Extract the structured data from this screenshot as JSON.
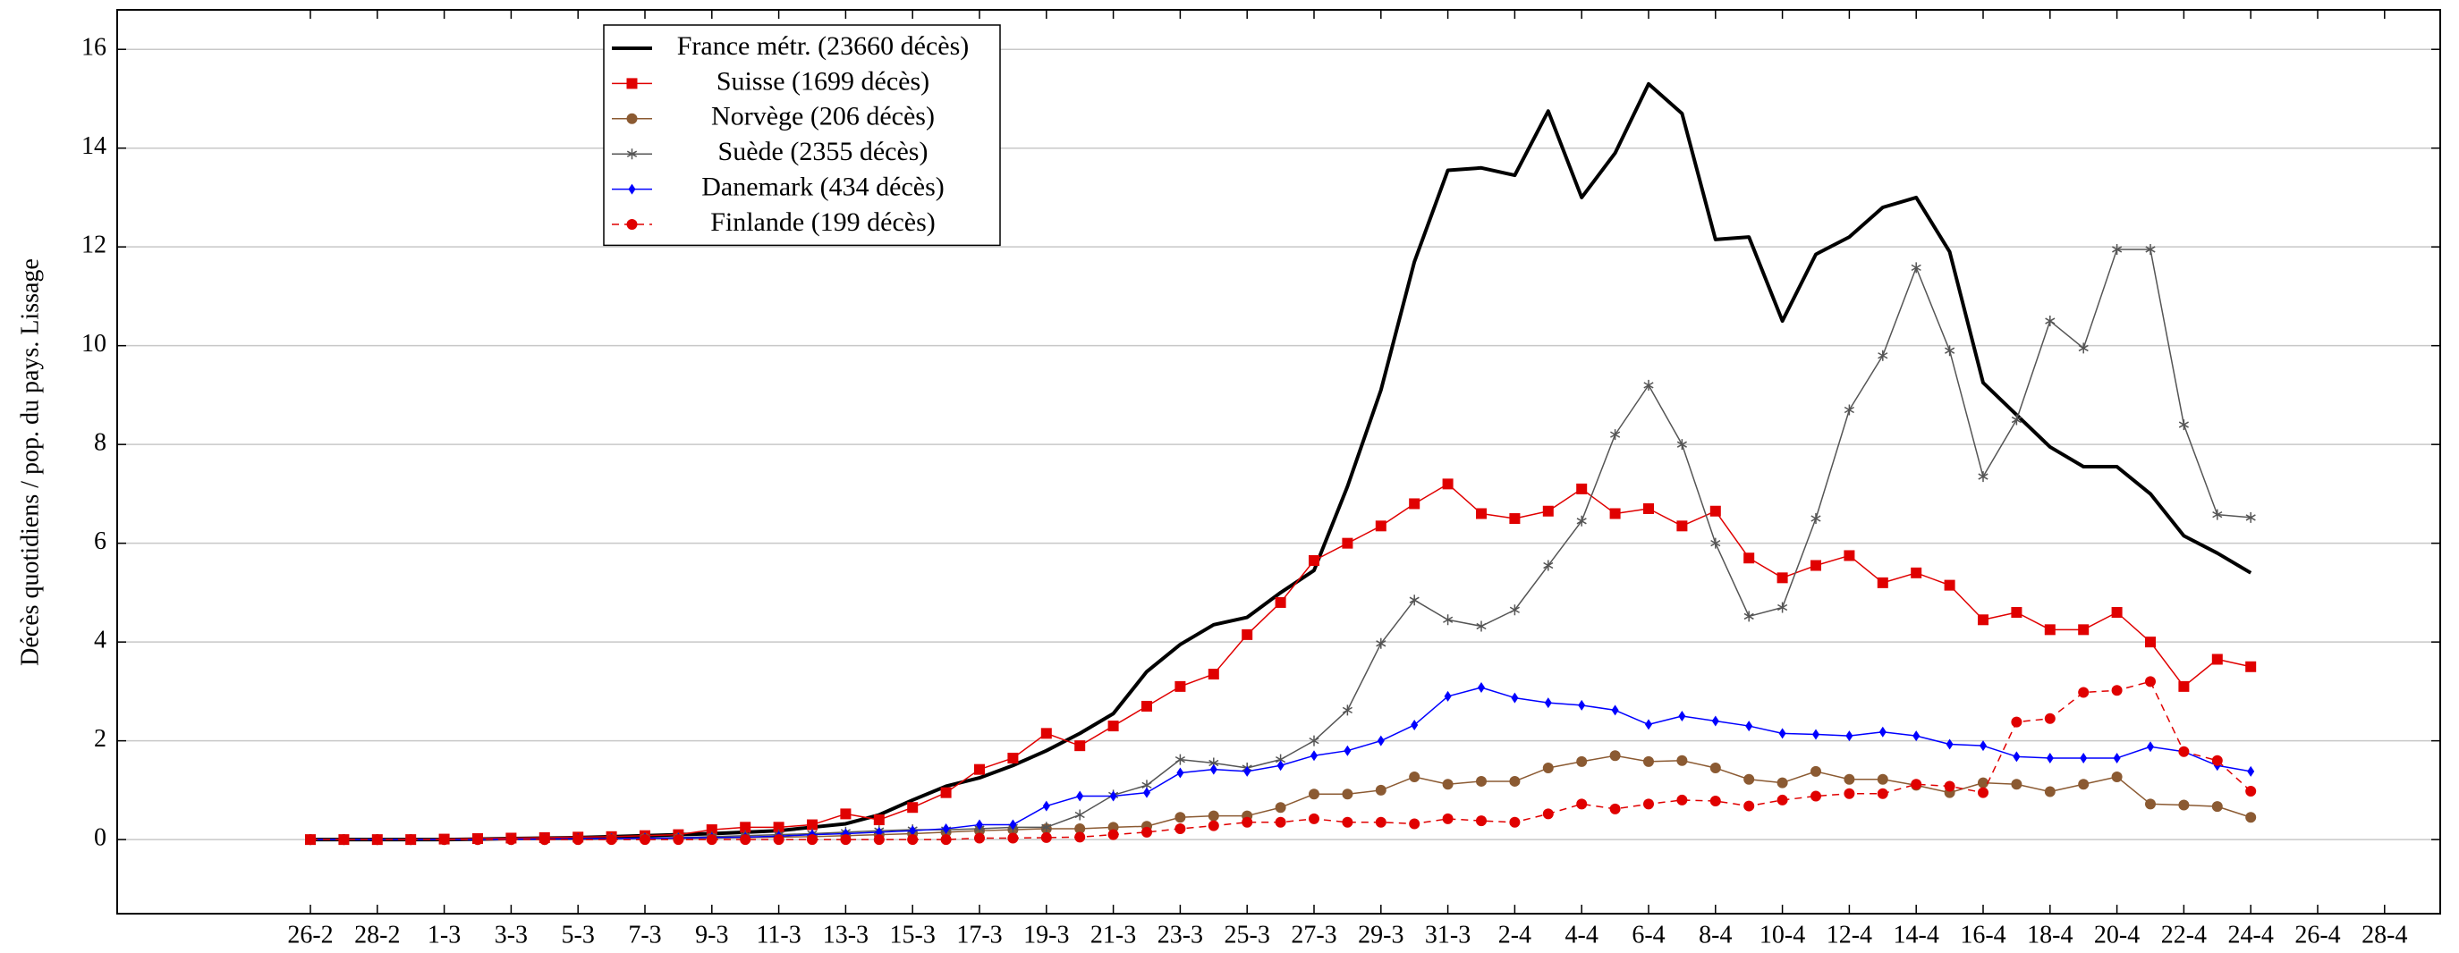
{
  "chart_data": {
    "type": "line",
    "y_label": "Décès quotidiens / pop. du pays. Lissage",
    "categories": [
      "26-2",
      null,
      "28-2",
      null,
      "1-3",
      null,
      "3-3",
      null,
      "5-3",
      null,
      "7-3",
      null,
      "9-3",
      null,
      "11-3",
      null,
      "13-3",
      null,
      "15-3",
      null,
      "17-3",
      null,
      "19-3",
      null,
      "21-3",
      null,
      "23-3",
      null,
      "25-3",
      null,
      "27-3",
      null,
      "29-3",
      null,
      "31-3",
      null,
      "2-4",
      null,
      "4-4",
      null,
      "6-4",
      null,
      "8-4",
      null,
      "10-4",
      null,
      "12-4",
      null,
      "14-4",
      null,
      "16-4",
      null,
      "18-4",
      null,
      "20-4",
      null,
      "22-4",
      null,
      "24-4",
      null,
      "26-4",
      null,
      "28-4"
    ],
    "ylim": [
      -1.5,
      16.8
    ],
    "yticks": [
      0,
      2,
      4,
      6,
      8,
      10,
      12,
      14,
      16
    ],
    "grid": true,
    "legend": "upper left",
    "series": [
      {
        "name": "France métr. (23660 décès)",
        "color": "#000000",
        "marker": "none",
        "dashed": false,
        "values": [
          0,
          0,
          0,
          0,
          0,
          0.01,
          0.02,
          0.03,
          0.04,
          0.06,
          0.08,
          0.1,
          0.12,
          0.15,
          0.18,
          0.25,
          0.32,
          0.5,
          0.8,
          1.08,
          1.25,
          1.5,
          1.8,
          2.15,
          2.55,
          3.4,
          3.95,
          4.35,
          4.5,
          5.0,
          5.45,
          7.15,
          9.1,
          11.7,
          13.55,
          13.6,
          13.45,
          14.75,
          13.0,
          13.9,
          15.3,
          14.7,
          12.15,
          12.2,
          10.5,
          11.85,
          12.2,
          12.8,
          13.0,
          11.9,
          9.25,
          8.6,
          7.95,
          7.55,
          7.55,
          7.0,
          6.15,
          5.8,
          5.4,
          null,
          null,
          null,
          null
        ]
      },
      {
        "name": "Suisse (1699 décès)",
        "color": "#e00000",
        "marker": "square",
        "dashed": false,
        "values": [
          0,
          0,
          0,
          0,
          0.01,
          0.02,
          0.03,
          0.04,
          0.05,
          0.06,
          0.08,
          0.1,
          0.2,
          0.25,
          0.25,
          0.3,
          0.52,
          0.4,
          0.65,
          0.95,
          1.42,
          1.65,
          2.15,
          1.9,
          2.3,
          2.7,
          3.1,
          3.35,
          4.15,
          4.8,
          5.65,
          6.0,
          6.35,
          6.8,
          7.2,
          6.6,
          6.5,
          6.65,
          7.1,
          6.6,
          6.7,
          6.35,
          6.65,
          5.7,
          5.3,
          5.55,
          5.75,
          5.2,
          5.4,
          5.15,
          4.45,
          4.6,
          4.25,
          4.25,
          4.6,
          4.0,
          3.1,
          3.65,
          3.5,
          null,
          null,
          null,
          null
        ]
      },
      {
        "name": "Norvège (206 décès)",
        "color": "#8b5a32",
        "marker": "circle",
        "dashed": false,
        "values": [
          0,
          0,
          0,
          0,
          0,
          0,
          0,
          0,
          0,
          0.01,
          0.02,
          0.02,
          0.03,
          0.04,
          0.05,
          0.06,
          0.08,
          0.1,
          0.12,
          0.15,
          0.18,
          0.2,
          0.22,
          0.22,
          0.25,
          0.27,
          0.45,
          0.48,
          0.48,
          0.65,
          0.92,
          0.92,
          1.0,
          1.27,
          1.12,
          1.18,
          1.18,
          1.45,
          1.58,
          1.7,
          1.58,
          1.6,
          1.45,
          1.22,
          1.15,
          1.38,
          1.22,
          1.22,
          1.1,
          0.95,
          1.15,
          1.12,
          0.97,
          1.12,
          1.27,
          0.72,
          0.7,
          0.67,
          0.45,
          null,
          null,
          null,
          null
        ]
      },
      {
        "name": "Suède (2355 décès)",
        "color": "#555555",
        "marker": "star",
        "dashed": false,
        "values": [
          0,
          0,
          0,
          0,
          0,
          0,
          0,
          0,
          0.01,
          0.02,
          0.03,
          0.04,
          0.06,
          0.08,
          0.1,
          0.12,
          0.15,
          0.18,
          0.2,
          0.2,
          0.22,
          0.25,
          0.25,
          0.5,
          0.9,
          1.1,
          1.62,
          1.55,
          1.45,
          1.62,
          2.0,
          2.62,
          3.97,
          4.85,
          4.45,
          4.32,
          4.65,
          5.55,
          6.45,
          8.2,
          9.2,
          8.0,
          6.0,
          4.52,
          4.7,
          6.5,
          8.7,
          9.8,
          11.58,
          9.9,
          7.35,
          8.5,
          10.5,
          9.95,
          11.95,
          11.95,
          8.4,
          6.58,
          6.52,
          null,
          null,
          null,
          null
        ]
      },
      {
        "name": "Danemark (434 décès)",
        "color": "#0000ff",
        "marker": "diamond",
        "dashed": false,
        "values": [
          0,
          0,
          0,
          0,
          0,
          0,
          0.01,
          0.01,
          0.02,
          0.02,
          0.03,
          0.03,
          0.04,
          0.05,
          0.07,
          0.1,
          0.12,
          0.15,
          0.18,
          0.22,
          0.3,
          0.3,
          0.68,
          0.88,
          0.88,
          0.95,
          1.35,
          1.42,
          1.38,
          1.5,
          1.7,
          1.8,
          2.0,
          2.32,
          2.9,
          3.08,
          2.87,
          2.77,
          2.72,
          2.62,
          2.33,
          2.5,
          2.4,
          2.3,
          2.15,
          2.13,
          2.1,
          2.18,
          2.1,
          1.93,
          1.9,
          1.68,
          1.65,
          1.65,
          1.65,
          1.88,
          1.78,
          1.5,
          1.38,
          null,
          null,
          null,
          null
        ]
      },
      {
        "name": "Finlande (199 décès)",
        "color": "#e00000",
        "marker": "circle",
        "dashed": true,
        "values": [
          0,
          0,
          0,
          0,
          0,
          0,
          0,
          0,
          0,
          0,
          0,
          0,
          0,
          0,
          0,
          0,
          0,
          0,
          0,
          0,
          0.03,
          0.03,
          0.04,
          0.05,
          0.1,
          0.15,
          0.22,
          0.28,
          0.35,
          0.35,
          0.42,
          0.35,
          0.35,
          0.32,
          0.42,
          0.38,
          0.35,
          0.52,
          0.72,
          0.62,
          0.72,
          0.8,
          0.78,
          0.68,
          0.8,
          0.88,
          0.93,
          0.93,
          1.12,
          1.08,
          0.95,
          2.38,
          2.45,
          2.98,
          3.02,
          3.2,
          1.78,
          1.6,
          0.98,
          null,
          null,
          null,
          null
        ]
      }
    ]
  }
}
